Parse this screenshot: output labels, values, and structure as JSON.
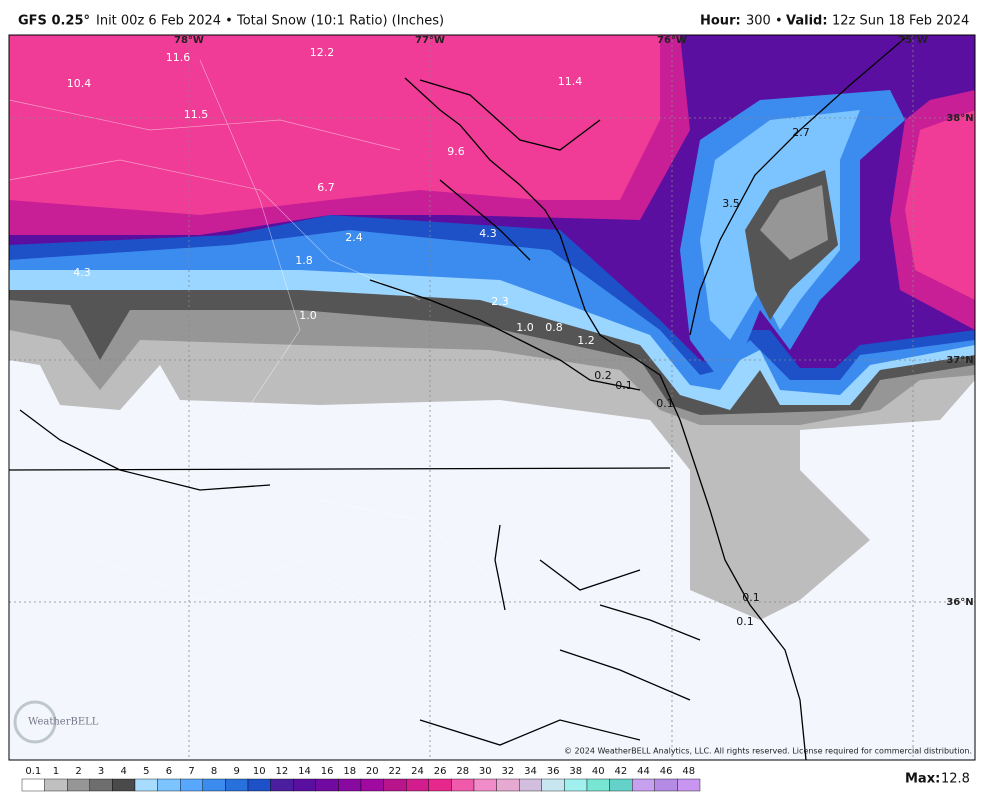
{
  "header": {
    "model": "GFS 0.25°",
    "description": "Init 00z 6 Feb 2024 • Total Snow (10:1 Ratio) (Inches)",
    "hour_label": "Hour:",
    "hour": "300",
    "separator": "•",
    "valid_label": "Valid:",
    "valid": "12z Sun 18 Feb 2024"
  },
  "map": {
    "longitudes": [
      "78°W",
      "77°W",
      "76°W",
      "75°W"
    ],
    "latitudes": [
      "38°N",
      "37°N",
      "36°N"
    ],
    "labels": [
      "11.6",
      "12.2",
      "10.4",
      "11.5",
      "11.4",
      "9.6",
      "6.7",
      "2.4",
      "4.3",
      "1.8",
      "4.3",
      "2.3",
      "1.0",
      "1.0",
      "0.8",
      "1.2",
      "0.2",
      "0.1",
      "0.1",
      "2.7",
      "3.5",
      "0.1",
      "0.1"
    ],
    "logo": "WeatherBELL",
    "copyright": "© 2024 WeatherBELL Analytics, LLC. All rights reserved. License required for commercial distribution."
  },
  "colorbar": {
    "ticks": [
      "0.1",
      "1",
      "2",
      "3",
      "4",
      "5",
      "6",
      "7",
      "8",
      "9",
      "10",
      "12",
      "14",
      "16",
      "18",
      "20",
      "22",
      "24",
      "26",
      "28",
      "30",
      "32",
      "34",
      "36",
      "38",
      "40",
      "42",
      "44",
      "46",
      "48"
    ],
    "colors": [
      "#ffffff",
      "#c0c0c0",
      "#969696",
      "#6e6e6e",
      "#4a4a4a",
      "#a8dcff",
      "#7cc4ff",
      "#58a8ff",
      "#3c8cf0",
      "#2870dc",
      "#1e50c8",
      "#4b1ea0",
      "#5a0fa0",
      "#700aa0",
      "#880aa0",
      "#a00aa0",
      "#b8148c",
      "#d21e8c",
      "#e6288c",
      "#f05aaa",
      "#f08cc8",
      "#e6aad2",
      "#d2bede",
      "#c8e6f0",
      "#a0f0f0",
      "#78e6d2",
      "#64d2c8",
      "#c8a0f0",
      "#b48ce6",
      "#c896f0"
    ]
  },
  "max": {
    "label": "Max:",
    "value": "12.8"
  }
}
